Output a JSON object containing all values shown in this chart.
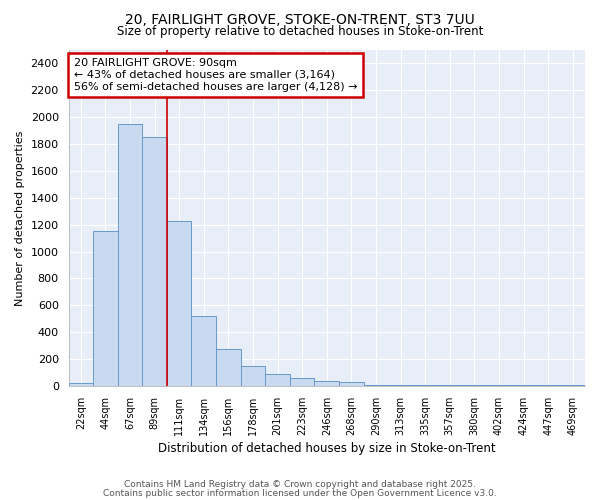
{
  "title1": "20, FAIRLIGHT GROVE, STOKE-ON-TRENT, ST3 7UU",
  "title2": "Size of property relative to detached houses in Stoke-on-Trent",
  "xlabel": "Distribution of detached houses by size in Stoke-on-Trent",
  "ylabel": "Number of detached properties",
  "bar_heights": [
    25,
    1150,
    1950,
    1850,
    1230,
    520,
    275,
    150,
    90,
    60,
    40,
    30,
    5,
    5,
    5,
    5,
    5,
    5,
    5,
    5,
    5
  ],
  "categories": [
    "22sqm",
    "44sqm",
    "67sqm",
    "89sqm",
    "111sqm",
    "134sqm",
    "156sqm",
    "178sqm",
    "201sqm",
    "223sqm",
    "246sqm",
    "268sqm",
    "290sqm",
    "313sqm",
    "335sqm",
    "357sqm",
    "380sqm",
    "402sqm",
    "424sqm",
    "447sqm",
    "469sqm"
  ],
  "bar_color": "#c8d9f0",
  "bar_edge_color": "#6699cc",
  "vline_color": "#cc0000",
  "vline_x": 3.5,
  "annotation_text": "20 FAIRLIGHT GROVE: 90sqm\n← 43% of detached houses are smaller (3,164)\n56% of semi-detached houses are larger (4,128) →",
  "ylim": [
    0,
    2500
  ],
  "yticks": [
    0,
    200,
    400,
    600,
    800,
    1000,
    1200,
    1400,
    1600,
    1800,
    2000,
    2200,
    2400
  ],
  "bg_color": "#e8eef8",
  "grid_color": "#ffffff",
  "footer1": "Contains HM Land Registry data © Crown copyright and database right 2025.",
  "footer2": "Contains public sector information licensed under the Open Government Licence v3.0."
}
